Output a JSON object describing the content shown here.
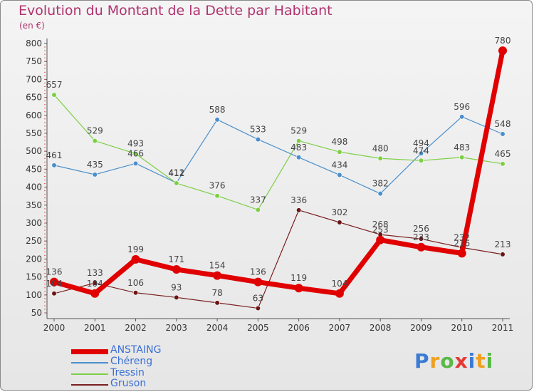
{
  "title": "Evolution du Montant de la Dette par Habitant",
  "unit": "(en €)",
  "logo": {
    "text": "Proxiti",
    "letters": [
      {
        "ch": "P",
        "color": "#3a7bd5"
      },
      {
        "ch": "r",
        "color": "#f0a020"
      },
      {
        "ch": "o",
        "color": "#58b947"
      },
      {
        "ch": "x",
        "color": "#e53935"
      },
      {
        "ch": "i",
        "color": "#3a7bd5"
      },
      {
        "ch": "t",
        "color": "#f0a020"
      },
      {
        "ch": "i",
        "color": "#58b947"
      }
    ]
  },
  "chart_data": {
    "type": "line",
    "title": "Evolution du Montant de la Dette par Habitant",
    "ylabel": "(en €)",
    "xlabel": "",
    "x": [
      "2000",
      "2001",
      "2002",
      "2003",
      "2004",
      "2005",
      "2006",
      "2007",
      "2008",
      "2009",
      "2010",
      "2011"
    ],
    "ylim": [
      50,
      800
    ],
    "yticks": [
      50,
      100,
      150,
      200,
      250,
      300,
      350,
      400,
      450,
      500,
      550,
      600,
      650,
      700,
      750,
      800
    ],
    "grid": false,
    "legend_position": "bottom-left",
    "series": [
      {
        "name": "ANSTAING",
        "color": "#e00000",
        "values": [
          136,
          104,
          199,
          171,
          154,
          136,
          119,
          104,
          253,
          233,
          216,
          780
        ]
      },
      {
        "name": "Chéreng",
        "color": "#4a8fcb",
        "values": [
          461,
          435,
          466,
          412,
          588,
          533,
          483,
          434,
          382,
          494,
          596,
          548
        ]
      },
      {
        "name": "Tressin",
        "color": "#7ccf45",
        "values": [
          657,
          529,
          493,
          411,
          376,
          337,
          529,
          498,
          480,
          474,
          483,
          465
        ]
      },
      {
        "name": "Gruson",
        "color": "#7a2020",
        "values": [
          104,
          133,
          106,
          93,
          78,
          63,
          336,
          302,
          268,
          256,
          232,
          213
        ]
      }
    ],
    "data_labels": {
      "ANSTAING": [
        "136",
        "104",
        "199",
        "171",
        "154",
        "136",
        "119",
        "104",
        "253",
        "233",
        "216",
        "780"
      ],
      "Chéreng": [
        "461",
        "435",
        "466",
        "412",
        "588",
        "533",
        "483",
        "434",
        "382",
        "494",
        "596",
        "548"
      ],
      "Tressin": [
        "657",
        "529",
        "493",
        "411",
        "376",
        "337",
        "529",
        "498",
        "480",
        "474",
        "483",
        "465"
      ],
      "Gruson": [
        "104",
        "133",
        "106",
        "93",
        "78",
        "63",
        "336",
        "302",
        "268",
        "256",
        "232",
        "213"
      ]
    }
  }
}
